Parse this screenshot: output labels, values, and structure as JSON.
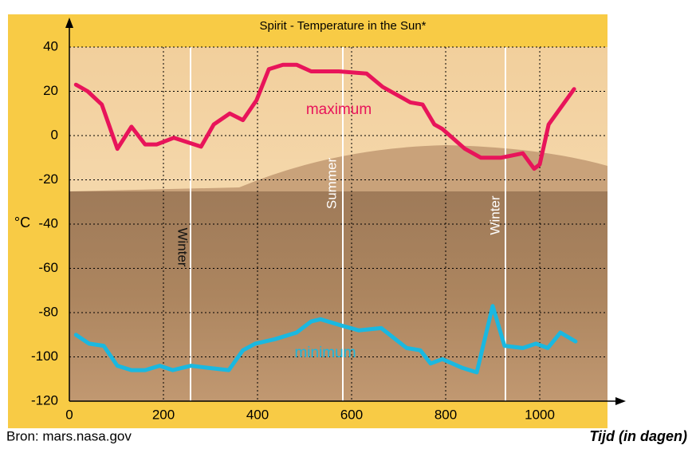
{
  "chart_data": {
    "type": "line",
    "title": "Spirit - Temperature in the Sun*",
    "y_label": "°C",
    "x_label": "Tijd (in dagen)",
    "source": "Bron: mars.nasa.gov",
    "annotations": [
      "maximum",
      "minimum",
      "Winter",
      "Summer",
      "Winter"
    ],
    "xlim": [
      0,
      1144
    ],
    "xticks": [
      0,
      200,
      400,
      600,
      800,
      1000
    ],
    "ylim": [
      -120,
      40
    ],
    "yticks": [
      -120,
      -100,
      -80,
      -60,
      -40,
      -20,
      0,
      20,
      40
    ],
    "grid": true,
    "series": [
      {
        "name": "maximum",
        "color": "#e8145a",
        "x": [
          14,
          39,
          69,
          102,
          132,
          161,
          186,
          222,
          280,
          307,
          341,
          369,
          398,
          424,
          454,
          483,
          514,
          573,
          632,
          666,
          725,
          751,
          776,
          793,
          841,
          875,
          917,
          964,
          988,
          1000,
          1019,
          1073
        ],
        "values": [
          23,
          20,
          14,
          -6,
          4,
          -4,
          -4,
          -1,
          -5,
          5,
          10,
          7,
          16,
          30,
          32,
          32,
          29,
          29,
          28,
          22,
          15,
          14,
          5,
          3,
          -6,
          -10,
          -10,
          -8,
          -15,
          -13,
          5,
          21
        ]
      },
      {
        "name": "minimum",
        "color": "#1ab8e0",
        "x": [
          14,
          42,
          73,
          102,
          132,
          161,
          192,
          220,
          259,
          297,
          339,
          369,
          395,
          437,
          483,
          514,
          534,
          581,
          615,
          663,
          717,
          746,
          768,
          793,
          836,
          866,
          900,
          925,
          964,
          992,
          1017,
          1044,
          1076
        ],
        "values": [
          -90,
          -94,
          -95,
          -104,
          -106,
          -106,
          -104,
          -106,
          -104,
          -105,
          -106,
          -97,
          -94,
          -92,
          -89,
          -84,
          -83,
          -86,
          -88,
          -87,
          -96,
          -97,
          -103,
          -101,
          -105,
          -107,
          -77,
          -95,
          -96,
          -94,
          -96,
          -89,
          -93
        ]
      }
    ]
  }
}
